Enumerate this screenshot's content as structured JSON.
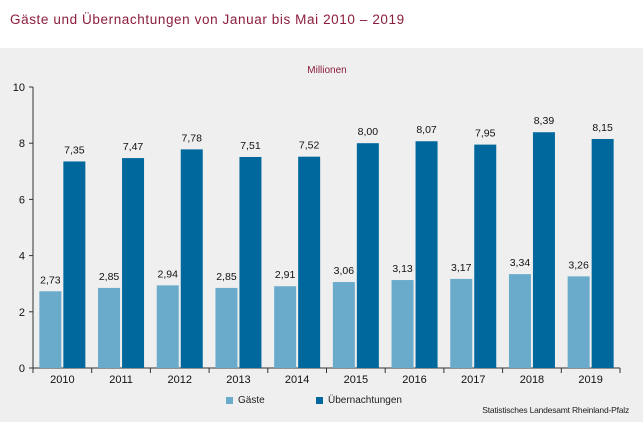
{
  "title": "Gäste und Übernachtungen von Januar bis Mai 2010 – 2019",
  "source": "Statistisches Landesamt Rheinland-Pfalz",
  "colors": {
    "title": "#8c1d3a",
    "gaeste": "#6aabcb",
    "uebernachtungen": "#00689d",
    "panel": "#efefef"
  },
  "chart_data": {
    "type": "bar",
    "title": "",
    "unit_label": "Millionen",
    "xlabel": "",
    "ylabel": "",
    "ylim": [
      0,
      10
    ],
    "y_ticks": [
      "0",
      "2",
      "4",
      "6",
      "8",
      "10"
    ],
    "grid": false,
    "legend_position": "bottom",
    "categories": [
      "2010",
      "2011",
      "2012",
      "2013",
      "2014",
      "2015",
      "2016",
      "2017",
      "2018",
      "2019"
    ],
    "series": [
      {
        "name": "Gäste",
        "color": "#6aabcb",
        "values": [
          2.73,
          2.85,
          2.94,
          2.85,
          2.91,
          3.06,
          3.13,
          3.17,
          3.34,
          3.26
        ],
        "labels": [
          "2,73",
          "2,85",
          "2,94",
          "2,85",
          "2,91",
          "3,06",
          "3,13",
          "3,17",
          "3,34",
          "3,26"
        ]
      },
      {
        "name": "Übernachtungen",
        "color": "#00689d",
        "values": [
          7.35,
          7.47,
          7.78,
          7.51,
          7.52,
          8.0,
          8.07,
          7.95,
          8.39,
          8.15
        ],
        "labels": [
          "7,35",
          "7,47",
          "7,78",
          "7,51",
          "7,52",
          "8,00",
          "8,07",
          "7,95",
          "8,39",
          "8,15"
        ]
      }
    ]
  }
}
